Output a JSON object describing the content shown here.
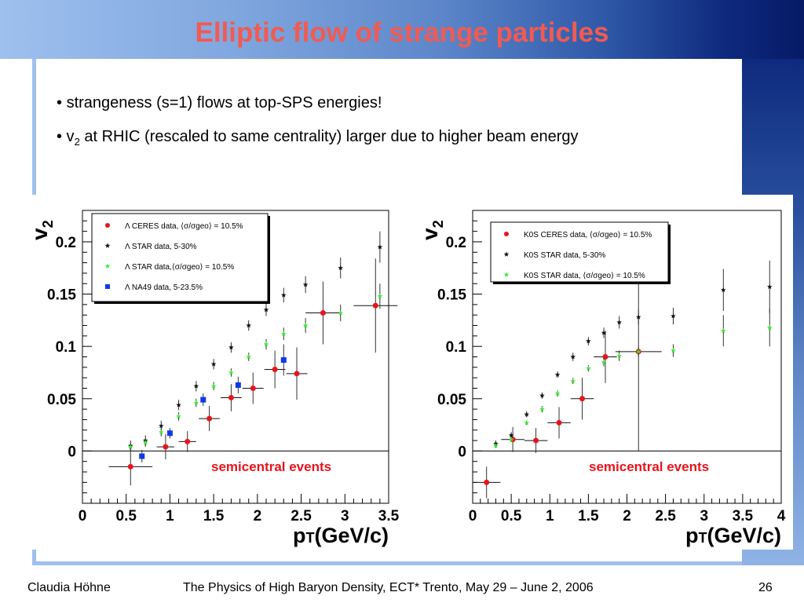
{
  "slide": {
    "title": "Elliptic flow of strange particles",
    "bullets": [
      {
        "prefix": "• ",
        "text": "strangeness (s=1) flows at top-SPS energies!"
      },
      {
        "prefix": "• v",
        "sub": "2",
        "text": " at RHIC (rescaled to same centrality) larger due to higher beam energy"
      }
    ],
    "footer": {
      "author": "Claudia Höhne",
      "conference": "The Physics of High Baryon Density, ECT* Trento, May 29 – June 2, 2006",
      "page": "26"
    }
  },
  "chart_data": [
    {
      "type": "scatter",
      "ylabel": "v2",
      "ylabel_main": "v",
      "ylabel_sub": "2",
      "xlabel": "pT(GeV/c)",
      "xlabel_prefix": "p",
      "xlabel_sub": "T",
      "xlabel_rest": "(GeV/c)",
      "xlim": [
        0,
        3.5
      ],
      "ylim": [
        -0.05,
        0.23
      ],
      "xticks": [
        0,
        0.5,
        1,
        1.5,
        2,
        2.5,
        3,
        3.5
      ],
      "xtick_labels": [
        "0",
        "0.5",
        "1",
        "1.5",
        "2",
        "2.5",
        "3",
        "3.5"
      ],
      "yticks": [
        0,
        0.05,
        0.1,
        0.15,
        0.2
      ],
      "ytick_labels": [
        "0",
        "0.05",
        "0.1",
        "0.15",
        "0.2"
      ],
      "annotation": "semicentral events",
      "legend_position": "top-left",
      "series": [
        {
          "name": "Λ CERES data, ⟨σ/σgeo⟩ = 10.5%",
          "marker": "circle",
          "color": "#e8141c",
          "x": [
            0.55,
            0.95,
            1.2,
            1.45,
            1.7,
            1.95,
            2.2,
            2.45,
            2.75,
            3.35
          ],
          "y": [
            -0.015,
            0.004,
            0.009,
            0.031,
            0.051,
            0.06,
            0.078,
            0.074,
            0.132,
            0.139
          ],
          "xerr": [
            0.25,
            0.1,
            0.1,
            0.12,
            0.12,
            0.12,
            0.12,
            0.12,
            0.2,
            0.25
          ],
          "yerr": [
            0.018,
            0.012,
            0.01,
            0.012,
            0.013,
            0.015,
            0.018,
            0.025,
            0.03,
            0.045
          ]
        },
        {
          "name": "Λ STAR data,  5-30%",
          "marker": "star",
          "color": "#111111",
          "x": [
            0.55,
            0.72,
            0.9,
            1.1,
            1.3,
            1.5,
            1.7,
            1.9,
            2.1,
            2.3,
            2.55,
            2.95,
            3.4
          ],
          "y": [
            0.005,
            0.01,
            0.024,
            0.044,
            0.062,
            0.083,
            0.099,
            0.12,
            0.135,
            0.149,
            0.159,
            0.175,
            0.195
          ],
          "yerr": [
            0.005,
            0.005,
            0.005,
            0.005,
            0.005,
            0.005,
            0.005,
            0.005,
            0.006,
            0.007,
            0.008,
            0.01,
            0.015
          ]
        },
        {
          "name": "Λ STAR data,⟨σ/σgeo⟩ = 10.5%",
          "marker": "star",
          "color": "#33ee33",
          "x": [
            0.55,
            0.72,
            0.9,
            1.1,
            1.3,
            1.5,
            1.7,
            1.9,
            2.1,
            2.3,
            2.55,
            2.95,
            3.4
          ],
          "y": [
            0.004,
            0.008,
            0.018,
            0.033,
            0.046,
            0.062,
            0.075,
            0.09,
            0.102,
            0.112,
            0.12,
            0.132,
            0.148
          ],
          "yerr": [
            0.004,
            0.004,
            0.004,
            0.004,
            0.004,
            0.004,
            0.004,
            0.004,
            0.005,
            0.006,
            0.007,
            0.008,
            0.012
          ]
        },
        {
          "name": "Λ NA49 data,  5-23.5%",
          "marker": "square",
          "color": "#1138e8",
          "x": [
            0.68,
            1.0,
            1.38,
            1.78,
            2.3
          ],
          "y": [
            -0.005,
            0.017,
            0.049,
            0.063,
            0.087
          ],
          "yerr": [
            0.006,
            0.005,
            0.006,
            0.008,
            0.015
          ]
        }
      ]
    },
    {
      "type": "scatter",
      "ylabel": "v2",
      "ylabel_main": "v",
      "ylabel_sub": "2",
      "xlabel": "pT(GeV/c)",
      "xlabel_prefix": "p",
      "xlabel_sub": "T",
      "xlabel_rest": "(GeV/c)",
      "xlim": [
        0,
        4
      ],
      "ylim": [
        -0.05,
        0.23
      ],
      "xticks": [
        0,
        0.5,
        1,
        1.5,
        2,
        2.5,
        3,
        3.5,
        4
      ],
      "xtick_labels": [
        "0",
        "0.5",
        "1",
        "1.5",
        "2",
        "2.5",
        "3",
        "3.5",
        "4"
      ],
      "yticks": [
        0,
        0.05,
        0.1,
        0.15,
        0.2
      ],
      "ytick_labels": [
        "0",
        "0.05",
        "0.1",
        "0.15",
        "0.2"
      ],
      "annotation": "semicentral events",
      "legend_position": "top-left",
      "series": [
        {
          "name": "K0S CERES data, ⟨σ/σgeo⟩ = 10.5%",
          "marker": "circle",
          "color": "#e8141c",
          "x": [
            0.18,
            0.52,
            0.82,
            1.12,
            1.42,
            1.72,
            2.15
          ],
          "y": [
            -0.03,
            0.011,
            0.01,
            0.027,
            0.05,
            0.09,
            0.095
          ],
          "xerr": [
            0.18,
            0.15,
            0.15,
            0.15,
            0.15,
            0.15,
            0.3
          ],
          "yerr": [
            0.015,
            0.012,
            0.012,
            0.015,
            0.02,
            0.025,
            0.095
          ]
        },
        {
          "name": "K0S STAR data,  5-30%",
          "marker": "star",
          "color": "#111111",
          "x": [
            0.3,
            0.5,
            0.7,
            0.9,
            1.1,
            1.3,
            1.5,
            1.7,
            1.9,
            2.15,
            2.6,
            3.25,
            3.85
          ],
          "y": [
            0.007,
            0.015,
            0.035,
            0.053,
            0.073,
            0.09,
            0.105,
            0.113,
            0.123,
            0.128,
            0.129,
            0.154,
            0.157
          ],
          "yerr": [
            0.003,
            0.003,
            0.003,
            0.003,
            0.003,
            0.004,
            0.004,
            0.005,
            0.006,
            0.007,
            0.008,
            0.02,
            0.025
          ]
        },
        {
          "name": "K0S STAR data, ⟨σ/σgeo⟩ = 10.5%",
          "marker": "star",
          "color": "#33ee33",
          "x": [
            0.3,
            0.5,
            0.7,
            0.9,
            1.1,
            1.3,
            1.5,
            1.7,
            1.9,
            2.15,
            2.6,
            3.25,
            3.85
          ],
          "y": [
            0.005,
            0.011,
            0.027,
            0.04,
            0.055,
            0.067,
            0.079,
            0.085,
            0.091,
            0.095,
            0.096,
            0.115,
            0.118
          ],
          "yerr": [
            0.002,
            0.002,
            0.002,
            0.003,
            0.003,
            0.003,
            0.003,
            0.004,
            0.005,
            0.005,
            0.006,
            0.015,
            0.018
          ]
        }
      ]
    }
  ]
}
